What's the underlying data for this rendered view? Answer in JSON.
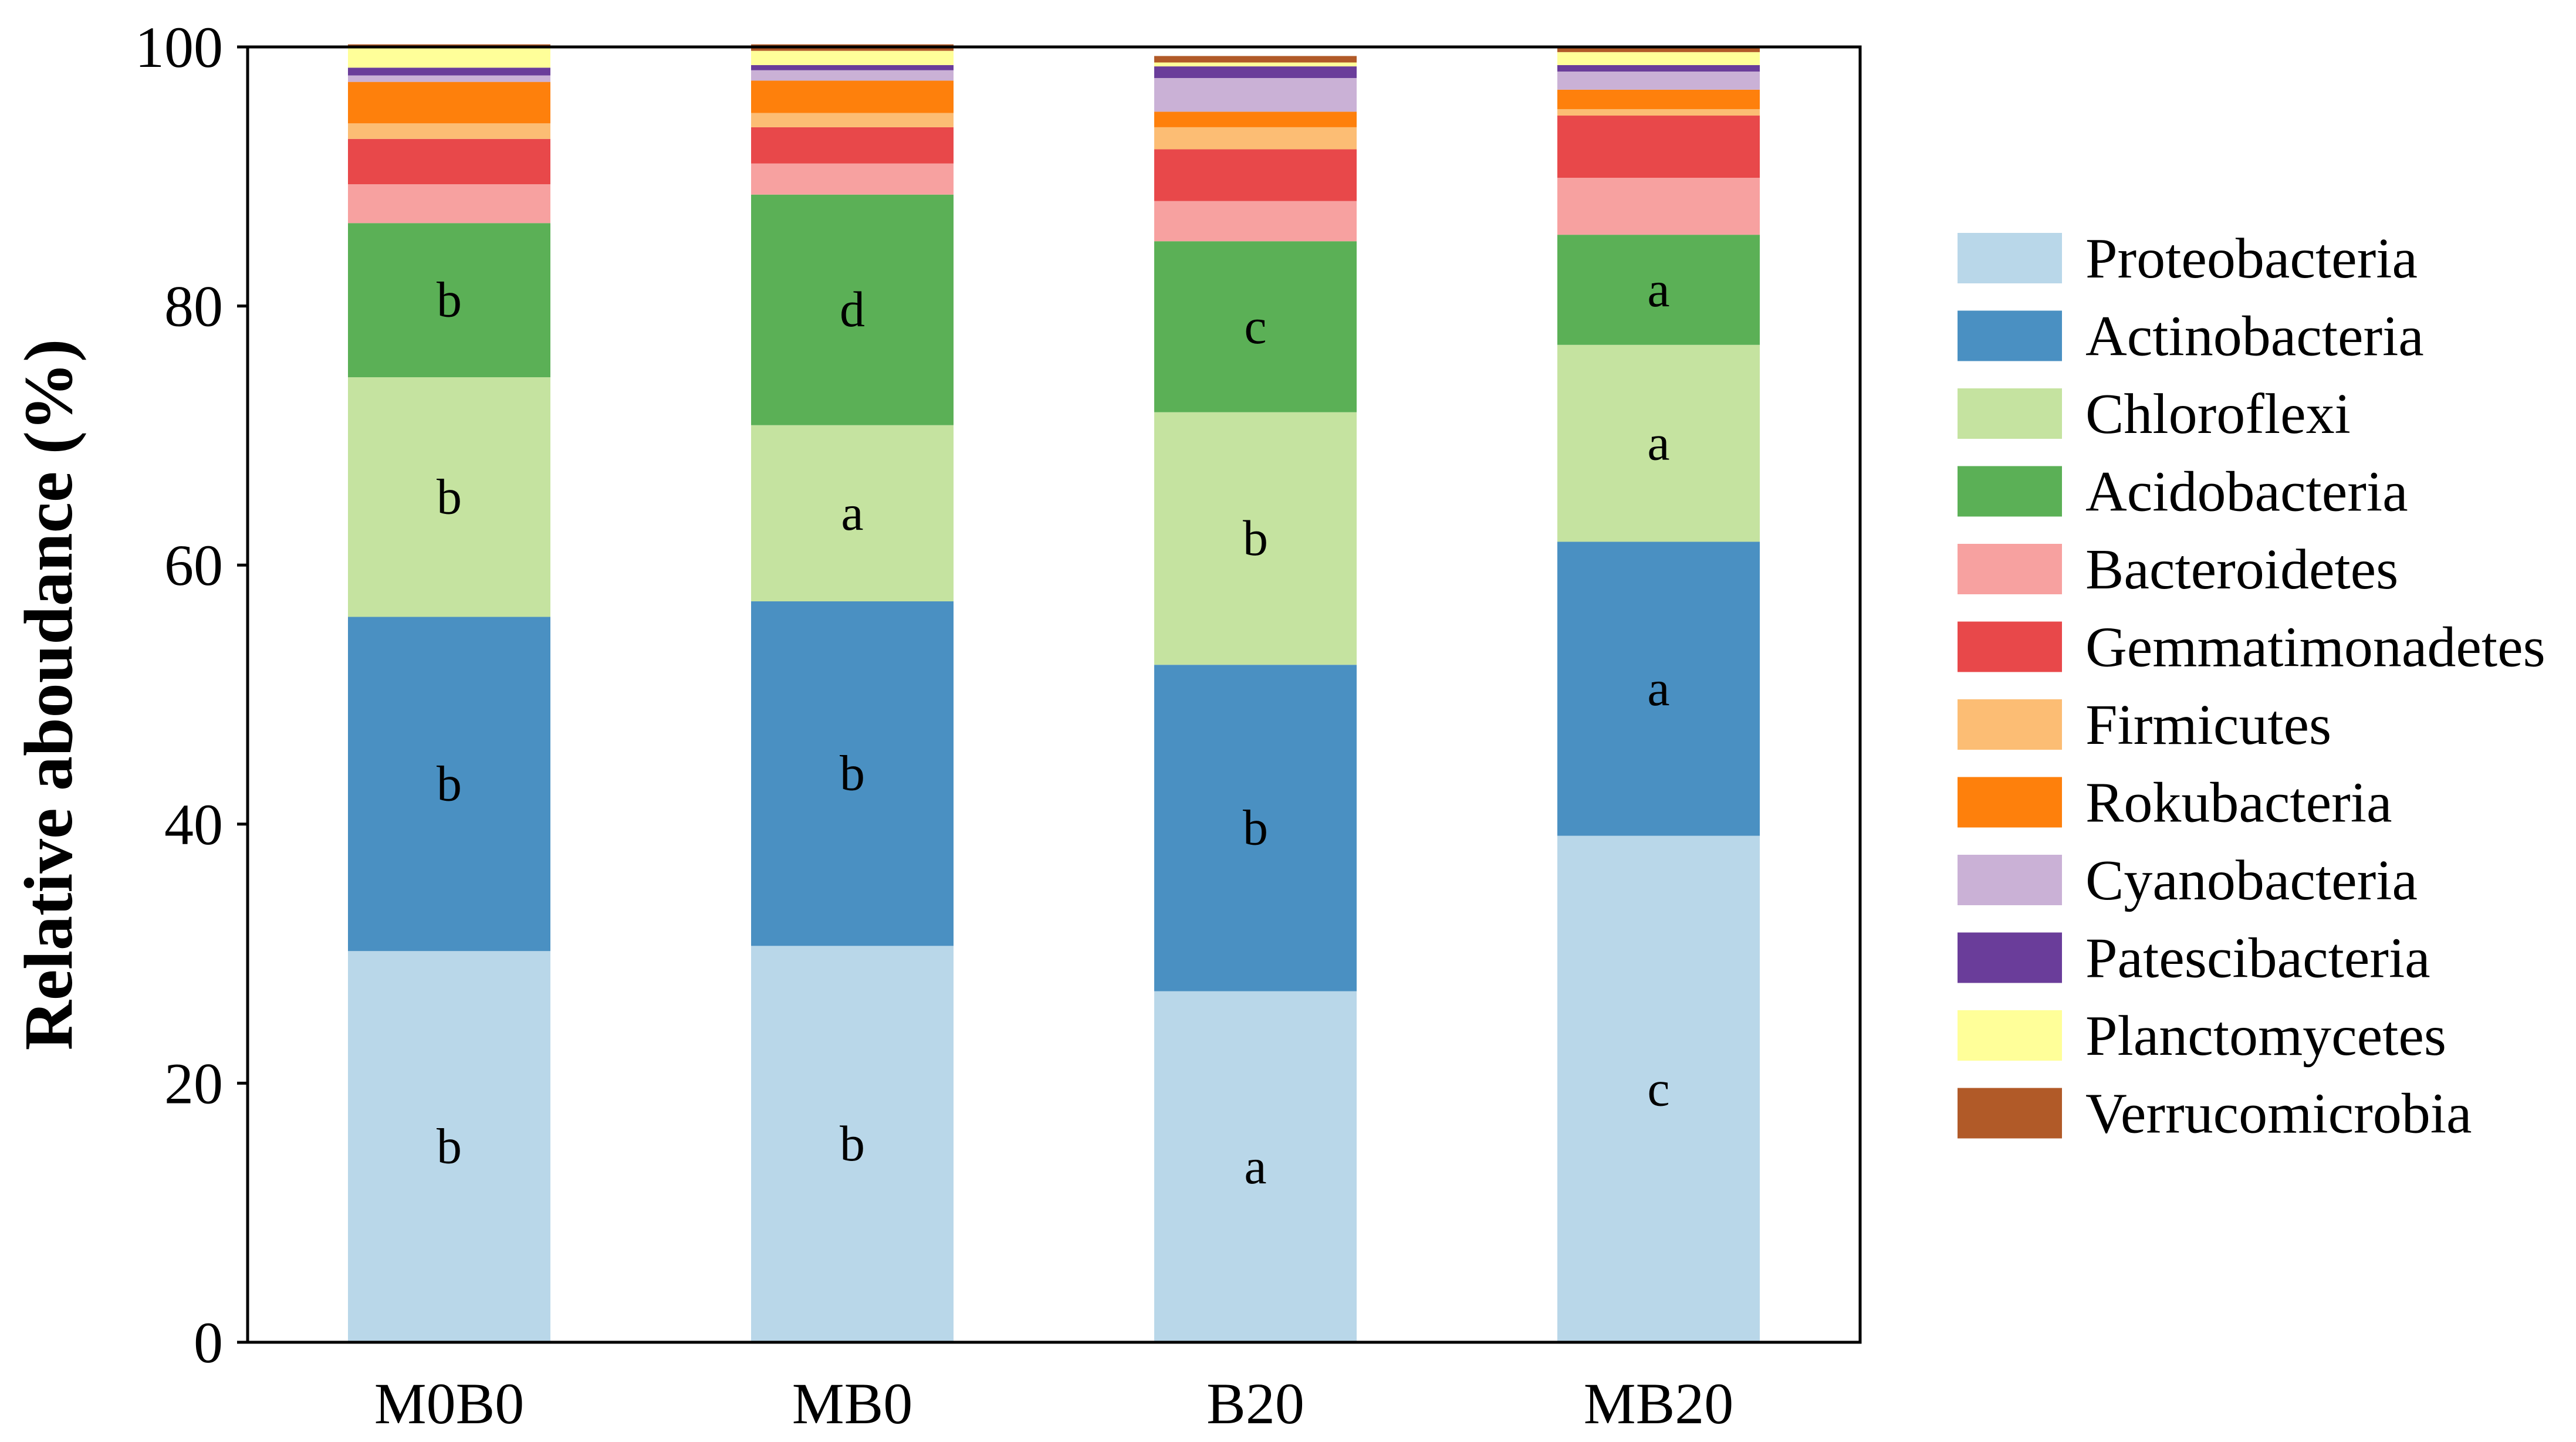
{
  "chart_data": {
    "type": "stacked-bar",
    "title": "",
    "xlabel": "",
    "ylabel": "Relative aboudance (%)",
    "ylim": [
      0,
      100
    ],
    "yticks": [
      0,
      20,
      40,
      60,
      80,
      100
    ],
    "grid": false,
    "legend_position": "right",
    "categories": [
      "M0B0",
      "MB0",
      "B20",
      "MB20"
    ],
    "series": [
      {
        "name": "Proteobacteria",
        "color": "#B9D7E9",
        "values": [
          30.2,
          30.6,
          27.1,
          39.1
        ],
        "letters": [
          "b",
          "b",
          "a",
          "c"
        ]
      },
      {
        "name": "Actinobacteria",
        "color": "#4A90C2",
        "values": [
          25.8,
          26.6,
          25.2,
          22.7
        ],
        "letters": [
          "b",
          "b",
          "b",
          "a"
        ]
      },
      {
        "name": "Chloroflexi",
        "color": "#C5E3A0",
        "values": [
          18.5,
          13.6,
          19.5,
          15.2
        ],
        "letters": [
          "b",
          "a",
          "b",
          "a"
        ]
      },
      {
        "name": "Acidobacteria",
        "color": "#5BB056",
        "values": [
          11.9,
          17.8,
          13.2,
          8.5
        ],
        "letters": [
          "b",
          "d",
          "c",
          "a"
        ]
      },
      {
        "name": "Bacteroidetes",
        "color": "#F7A1A0",
        "values": [
          3.0,
          2.4,
          3.1,
          4.4
        ],
        "letters": []
      },
      {
        "name": "Gemmatimonadetes",
        "color": "#E8484A",
        "values": [
          3.5,
          2.8,
          4.0,
          4.8
        ],
        "letters": []
      },
      {
        "name": "Firmicutes",
        "color": "#FCBD74",
        "values": [
          1.2,
          1.1,
          1.7,
          0.5
        ],
        "letters": []
      },
      {
        "name": "Rokubacteria",
        "color": "#FE800C",
        "values": [
          3.2,
          2.5,
          1.2,
          1.5
        ],
        "letters": []
      },
      {
        "name": "Cyanobacteria",
        "color": "#CAB1D6",
        "values": [
          0.5,
          0.8,
          2.6,
          1.4
        ],
        "letters": []
      },
      {
        "name": "Patescibacteria",
        "color": "#6A3D9A",
        "values": [
          0.6,
          0.4,
          0.9,
          0.5
        ],
        "letters": []
      },
      {
        "name": "Planctomycetes",
        "color": "#FFFF99",
        "values": [
          1.5,
          1.1,
          0.3,
          1.0
        ],
        "letters": []
      },
      {
        "name": "Verrucomicrobia",
        "color": "#B15A28",
        "values": [
          0.3,
          0.5,
          0.5,
          0.4
        ],
        "letters": []
      }
    ]
  }
}
